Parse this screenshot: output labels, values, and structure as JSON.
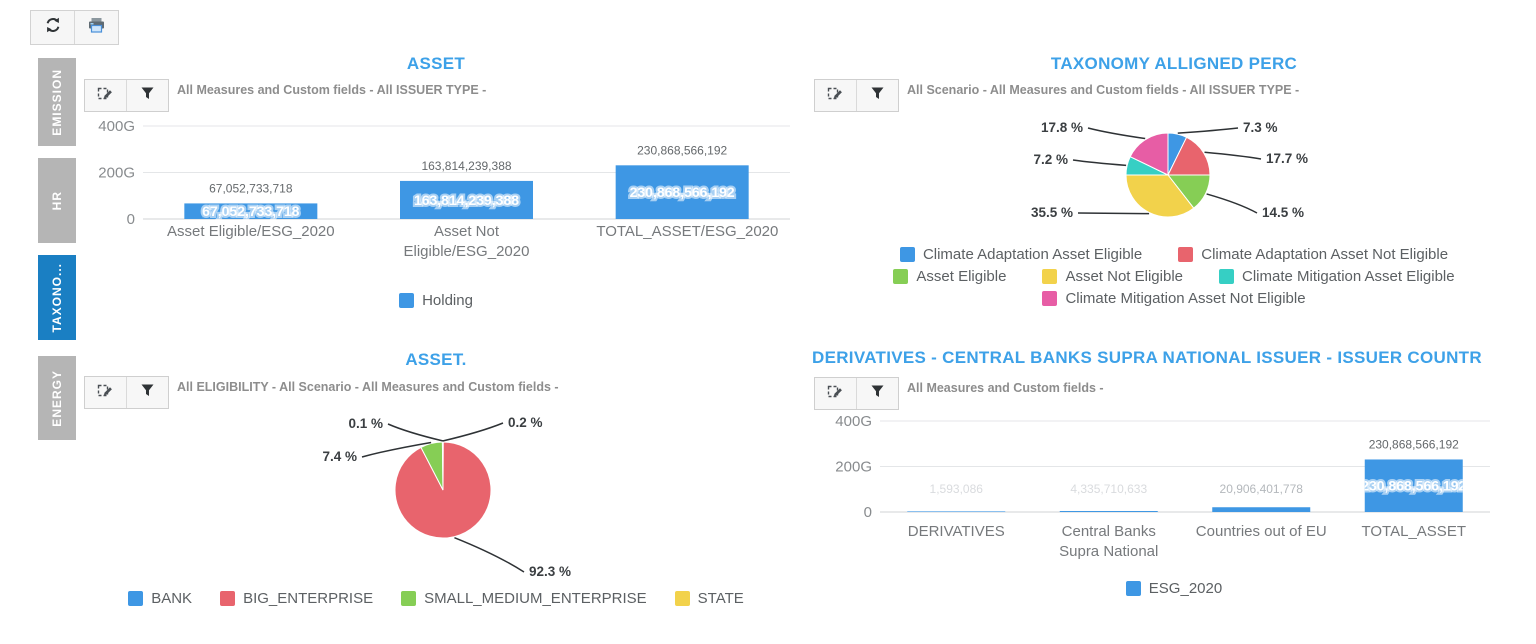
{
  "app_toolbar": {
    "buttons": [
      {
        "name": "refresh",
        "icon": "refresh-icon"
      },
      {
        "name": "print",
        "icon": "printer-icon"
      }
    ]
  },
  "sidebar": {
    "tabs": [
      {
        "label": "EMISSION",
        "active": false
      },
      {
        "label": "HR",
        "active": false
      },
      {
        "label": "TAXONO...",
        "active": true
      },
      {
        "label": "ENERGY",
        "active": false
      }
    ]
  },
  "panel_toolbar_icons": [
    "edit-chart-icon",
    "filter-icon"
  ],
  "colors": {
    "title_blue": "#3da1e8",
    "bar_blue": "#3e97e4",
    "active_tab_blue": "#1a7fc3",
    "red": "#e8646d",
    "green": "#86ce55",
    "yellow": "#f2d24b",
    "teal": "#36cfc4",
    "pink": "#e75da5"
  },
  "chart_data": [
    {
      "id": "asset",
      "type": "bar",
      "title": "ASSET",
      "subtitle": "All Measures and Custom fields - All ISSUER TYPE -",
      "categories": [
        "Asset Eligible/ESG_2020",
        "Asset Not Eligible/ESG_2020",
        "TOTAL_ASSET/ESG_2020"
      ],
      "series": [
        {
          "name": "Holding",
          "color": "#3e97e4",
          "values": [
            67052733718,
            163814239388,
            230868566192
          ]
        }
      ],
      "value_labels": [
        "67,052,733,718",
        "163,814,239,388",
        "230,868,566,192"
      ],
      "ylim": [
        0,
        400000000000
      ],
      "yticks": [
        {
          "value": 0,
          "label": "0"
        },
        {
          "value": 200000000000,
          "label": "200G"
        },
        {
          "value": 400000000000,
          "label": "400G"
        }
      ],
      "grid": true,
      "legend_position": "bottom"
    },
    {
      "id": "taxonomy_alligned_perc",
      "type": "pie",
      "title": "TAXONOMY ALLIGNED PERC",
      "subtitle": "All Scenario - All Measures and Custom fields - All ISSUER TYPE -",
      "slices": [
        {
          "label": "Climate Adaptation Asset Eligible",
          "color": "#3e97e4",
          "pct": 7.3,
          "pct_label": "7.3 %"
        },
        {
          "label": "Climate Adaptation Asset Not Eligible",
          "color": "#e8646d",
          "pct": 17.7,
          "pct_label": "17.7 %"
        },
        {
          "label": "Asset Eligible",
          "color": "#86ce55",
          "pct": 14.5,
          "pct_label": "14.5 %"
        },
        {
          "label": "Asset Not Eligible",
          "color": "#f2d24b",
          "pct": 35.5,
          "pct_label": "35.5 %"
        },
        {
          "label": "Climate Mitigation Asset Eligible",
          "color": "#36cfc4",
          "pct": 7.2,
          "pct_label": "7.2 %"
        },
        {
          "label": "Climate Mitigation Asset Not Eligible",
          "color": "#e75da5",
          "pct": 17.8,
          "pct_label": "17.8 %"
        }
      ],
      "legend_position": "bottom"
    },
    {
      "id": "asset_pie",
      "type": "pie",
      "title": "ASSET.",
      "subtitle": "All ELIGIBILITY - All Scenario - All Measures and Custom fields -",
      "slices": [
        {
          "label": "BANK",
          "color": "#3e97e4",
          "pct": 0.1,
          "pct_label": "0.1 %"
        },
        {
          "label": "BIG_ENTERPRISE",
          "color": "#e8646d",
          "pct": 92.3,
          "pct_label": "92.3 %"
        },
        {
          "label": "SMALL_MEDIUM_ENTERPRISE",
          "color": "#86ce55",
          "pct": 7.4,
          "pct_label": "7.4 %"
        },
        {
          "label": "STATE",
          "color": "#f2d24b",
          "pct": 0.2,
          "pct_label": "0.2 %"
        }
      ],
      "legend_position": "bottom"
    },
    {
      "id": "derivatives",
      "type": "bar",
      "title": "DERIVATIVES - CENTRAL BANKS SUPRA NATIONAL ISSUER - ISSUER COUNTR",
      "subtitle": "All Measures and Custom fields -",
      "categories": [
        "DERIVATIVES",
        "Central Banks Supra National",
        "Countries out of EU",
        "TOTAL_ASSET"
      ],
      "series": [
        {
          "name": "ESG_2020",
          "color": "#3e97e4",
          "values": [
            1593086,
            4335710633,
            20906401778,
            230868566192
          ]
        }
      ],
      "value_labels": [
        "1,593,086",
        "4,335,710,633",
        "20,906,401,778",
        "230,868,566,192"
      ],
      "ylim": [
        0,
        400000000000
      ],
      "yticks": [
        {
          "value": 0,
          "label": "0"
        },
        {
          "value": 200000000000,
          "label": "200G"
        },
        {
          "value": 400000000000,
          "label": "400G"
        }
      ],
      "grid": true,
      "legend_position": "bottom"
    }
  ]
}
